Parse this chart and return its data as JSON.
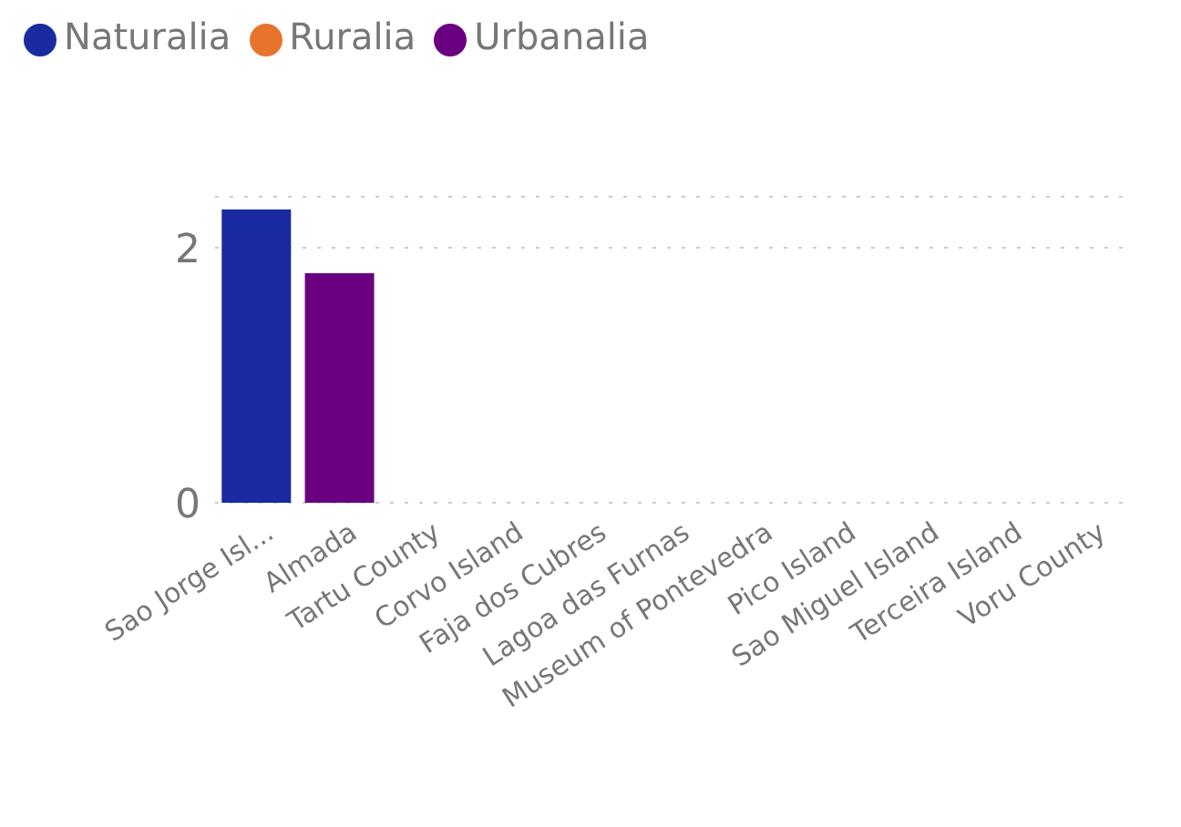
{
  "chart_data": {
    "type": "bar",
    "stacked": true,
    "categories": [
      "Sao Jorge Isl...",
      "Almada",
      "Tartu County",
      "Corvo Island",
      "Faja dos Cubres",
      "Lagoa das Furnas",
      "Museum of Pontevedra",
      "Pico Island",
      "Sao Miguel Island",
      "Terceira Island",
      "Voru County"
    ],
    "series": [
      {
        "name": "Naturalia",
        "color": "#1a2aa0",
        "values": [
          2.3,
          null,
          null,
          null,
          null,
          null,
          null,
          null,
          null,
          null,
          null
        ]
      },
      {
        "name": "Ruralia",
        "color": "#e8742c",
        "values": [
          null,
          null,
          null,
          null,
          null,
          null,
          null,
          null,
          null,
          null,
          null
        ]
      },
      {
        "name": "Urbanalia",
        "color": "#6a0080",
        "values": [
          null,
          1.8,
          null,
          null,
          null,
          null,
          null,
          null,
          null,
          null,
          null
        ]
      }
    ],
    "ylim": [
      0,
      2.4
    ],
    "yticks": [
      0,
      2
    ],
    "grid": "y",
    "legend": "top left"
  }
}
